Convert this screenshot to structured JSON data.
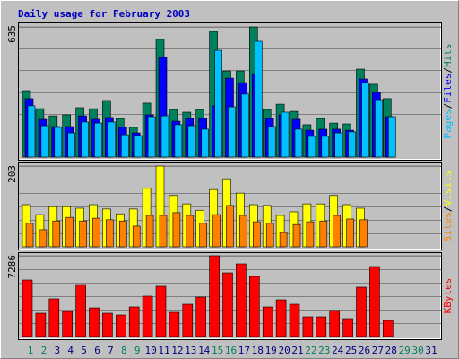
{
  "chart_data": [
    {
      "type": "bar",
      "title": "Daily usage for February 2003",
      "legend_separator": "/",
      "ylim": [
        0,
        635
      ],
      "yticks": [
        635
      ],
      "series": [
        {
          "name": "Hits",
          "color": "#00805c",
          "values": [
            324,
            236,
            201,
            206,
            241,
            236,
            276,
            188,
            145,
            263,
            574,
            232,
            219,
            232,
            613,
            420,
            420,
            635,
            232,
            258,
            223,
            158,
            188,
            166,
            162,
            429,
            355,
            285,
            0,
            0,
            0
          ]
        },
        {
          "name": "Files",
          "color": "#0000ff",
          "values": [
            285,
            184,
            149,
            149,
            201,
            184,
            193,
            145,
            118,
            206,
            486,
            175,
            188,
            188,
            250,
            385,
            363,
            407,
            188,
            206,
            184,
            131,
            136,
            136,
            131,
            381,
            315,
            197,
            0,
            0,
            0
          ]
        },
        {
          "name": "Pages",
          "color": "#00c0ff",
          "values": [
            250,
            153,
            145,
            118,
            171,
            166,
            171,
            109,
            105,
            197,
            201,
            158,
            153,
            136,
            521,
            245,
            307,
            565,
            149,
            219,
            136,
            101,
            101,
            118,
            123,
            363,
            280,
            197,
            0,
            0,
            0
          ]
        }
      ]
    },
    {
      "type": "bar",
      "legend_separator": "/",
      "ylim": [
        0,
        203
      ],
      "yticks": [
        203
      ],
      "series": [
        {
          "name": "Visits",
          "color": "#ffff00",
          "values": [
            106,
            81,
            101,
            101,
            97,
            106,
            95,
            83,
            95,
            147,
            203,
            129,
            108,
            92,
            144,
            171,
            135,
            106,
            104,
            79,
            88,
            108,
            108,
            129,
            106,
            97,
            0,
            0,
            0,
            0,
            0
          ]
        },
        {
          "name": "Sites",
          "color": "#ff8000",
          "values": [
            59,
            43,
            65,
            74,
            65,
            72,
            68,
            65,
            52,
            79,
            79,
            86,
            79,
            59,
            81,
            104,
            79,
            63,
            59,
            36,
            56,
            63,
            65,
            79,
            70,
            68,
            0,
            0,
            0,
            0,
            0
          ]
        }
      ]
    },
    {
      "type": "bar",
      "ylim": [
        0,
        7286
      ],
      "yticks": [
        7286
      ],
      "categories": [
        "1",
        "2",
        "3",
        "4",
        "5",
        "6",
        "7",
        "8",
        "9",
        "10",
        "11",
        "12",
        "13",
        "14",
        "15",
        "16",
        "17",
        "18",
        "19",
        "20",
        "21",
        "22",
        "23",
        "24",
        "25",
        "26",
        "27",
        "28",
        "29",
        "30",
        "31"
      ],
      "category_colors": [
        "#00805c",
        "#00805c",
        "#000080",
        "#000080",
        "#000080",
        "#000080",
        "#000080",
        "#00805c",
        "#00805c",
        "#000080",
        "#000080",
        "#000080",
        "#000080",
        "#000080",
        "#00805c",
        "#00805c",
        "#000080",
        "#000080",
        "#000080",
        "#000080",
        "#000080",
        "#00805c",
        "#00805c",
        "#000080",
        "#000080",
        "#000080",
        "#000080",
        "#000080",
        "#00805c",
        "#00805c",
        "#000080"
      ],
      "series": [
        {
          "name": "KBytes",
          "color": "#ff0000",
          "values": [
            5100,
            2105,
            3400,
            2267,
            4695,
            2590,
            2105,
            1943,
            2672,
            3643,
            4534,
            2186,
            2914,
            3562,
            7286,
            5748,
            6557,
            5424,
            2672,
            3319,
            2914,
            1781,
            1781,
            2348,
            1619,
            4453,
            6315,
            1457,
            0,
            0,
            0
          ]
        }
      ]
    }
  ]
}
